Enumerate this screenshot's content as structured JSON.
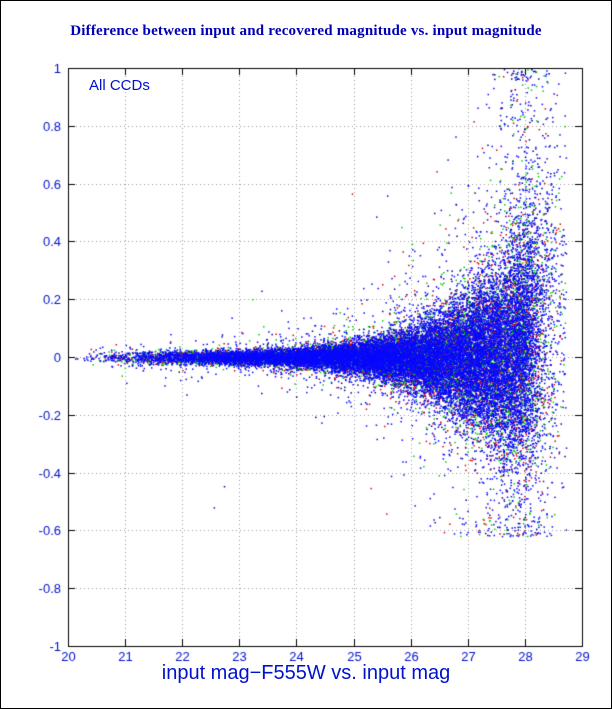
{
  "figure": {
    "title": "Difference between input and recovered magnitude vs. input magnitude",
    "annotation": "All CCDs",
    "xlabel": "input mag−F555W vs. input mag",
    "title_color": "#0000b4",
    "annotation_color": "#0012cc",
    "label_color": "#0012cc"
  },
  "chart_data": {
    "type": "scatter",
    "title": "Difference between input and recovered magnitude vs. input magnitude",
    "annotation": "All CCDs",
    "xlabel": "input mag−F555W vs. input mag",
    "ylabel": "",
    "xlim": [
      20,
      29
    ],
    "ylim": [
      -1,
      1
    ],
    "xtick_step": 1,
    "ytick_step": 0.2,
    "grid": "dashed",
    "axis_color": "#000000",
    "grid_color": "#9a9a9a",
    "tick_label_color": "#0012cc",
    "series": [
      {
        "name": "chip-navy",
        "color": "#000090",
        "fraction": 0.17
      },
      {
        "name": "chip-red",
        "color": "#e00000",
        "fraction": 0.13
      },
      {
        "name": "chip-green",
        "color": "#00cc00",
        "fraction": 0.13
      },
      {
        "name": "chip-blue",
        "color": "#0808ff",
        "fraction": 0.57
      }
    ],
    "scatter_model": {
      "seed": 7,
      "n_points": 30000,
      "x_min": 20,
      "x_max": 28.72,
      "x_density_power": 1.6,
      "sigma_table": {
        "mag": [
          20,
          22,
          23,
          24,
          24.8,
          25.5,
          26,
          26.5,
          27,
          27.4,
          27.8,
          28.2,
          28.72
        ],
        "sigma": [
          0.013,
          0.012,
          0.013,
          0.017,
          0.024,
          0.038,
          0.055,
          0.08,
          0.115,
          0.15,
          0.2,
          0.26,
          0.32
        ]
      },
      "outlier_fraction": 0.06,
      "outlier_scale": 3.2,
      "wild_fraction": 0.0015,
      "faint_tail": {
        "start": 27.2,
        "fraction": 0.16,
        "max": 1.0,
        "neg_ratio": -0.55,
        "pos_prob": 0.78
      },
      "positive_bias": {
        "start": 27.7,
        "coef": 0.35
      },
      "completeness_drop": {
        "start": 28.0,
        "scale": 0.24
      },
      "y_clip": [
        -0.62,
        1.0
      ]
    }
  }
}
